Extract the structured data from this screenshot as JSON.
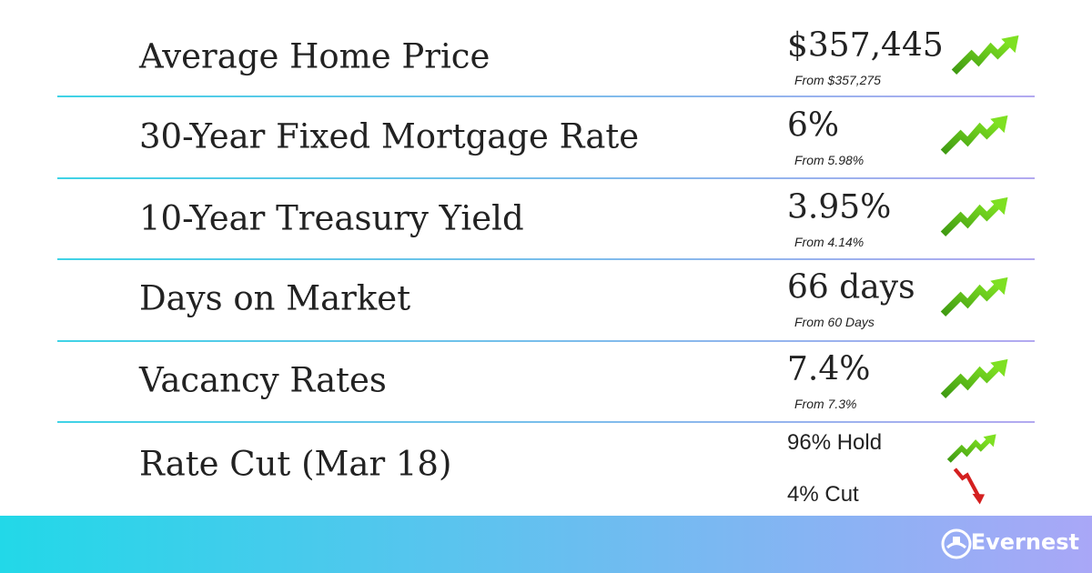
{
  "rows": [
    {
      "label": "Average Home Price",
      "value": "$357,445",
      "from": "From $357,275"
    },
    {
      "label": "30-Year Fixed Mortgage Rate",
      "value": "6%",
      "from": "From 5.98%"
    },
    {
      "label": "10-Year Treasury Yield",
      "value": "3.95%",
      "from": "From 4.14%"
    },
    {
      "label": "Days on Market",
      "value": "66 days",
      "from": "From 60 Days"
    },
    {
      "label": "Vacancy Rates",
      "value": "7.4%",
      "from": "From 7.3%"
    }
  ],
  "last_row": {
    "label": "Rate Cut (Mar 18)",
    "options": [
      "96% Hold",
      "4% Cut"
    ]
  },
  "footer": {
    "brand": "Evernest"
  }
}
